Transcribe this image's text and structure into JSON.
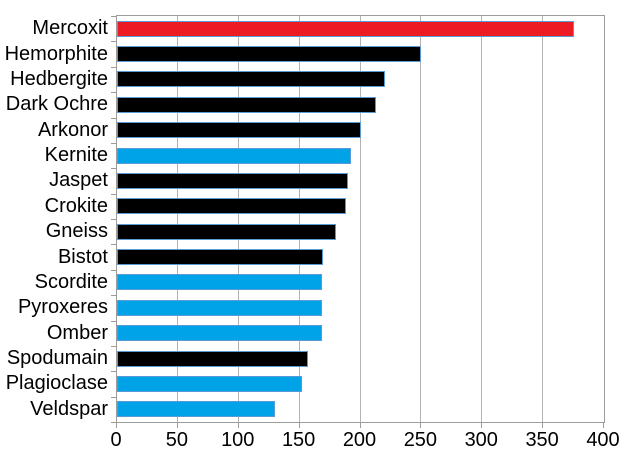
{
  "chart_data": {
    "type": "bar",
    "orientation": "horizontal",
    "title": "",
    "xlabel": "",
    "ylabel": "",
    "categories": [
      "Mercoxit",
      "Hemorphite",
      "Hedbergite",
      "Dark Ochre",
      "Arkonor",
      "Kernite",
      "Jaspet",
      "Crokite",
      "Gneiss",
      "Bistot",
      "Scordite",
      "Pyroxeres",
      "Omber",
      "Spodumain",
      "Plagioclase",
      "Veldspar"
    ],
    "values": [
      375,
      250,
      220,
      213,
      200,
      192,
      190,
      188,
      180,
      169,
      168,
      168,
      168,
      157,
      152,
      130
    ],
    "bar_colors": [
      "red",
      "black",
      "black",
      "black",
      "black",
      "blue",
      "black",
      "black",
      "black",
      "black",
      "blue",
      "blue",
      "blue",
      "black",
      "blue",
      "blue"
    ],
    "color_map": {
      "red": "#ED1C24",
      "blue": "#00A2E8",
      "black": "#000000"
    },
    "bar_border_color": "#5B9BD5",
    "xlim": [
      0,
      400
    ],
    "xticks": [
      0,
      50,
      100,
      150,
      200,
      250,
      300,
      350,
      400
    ],
    "grid": true,
    "gridline_color": "#B3B3B3",
    "axis_color": "#9C9C9C",
    "background": "#FFFFFF",
    "legend": "none"
  }
}
